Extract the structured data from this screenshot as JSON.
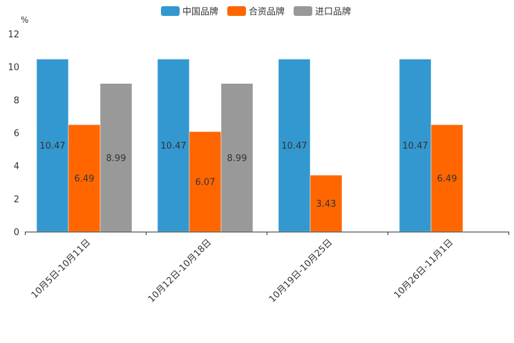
{
  "chart_data": {
    "type": "bar",
    "title": "",
    "xlabel": "",
    "ylabel": "%",
    "ylim": [
      0,
      12
    ],
    "yticks": [
      0,
      2,
      4,
      6,
      8,
      10,
      12
    ],
    "grid": false,
    "legend_position": "top",
    "categories": [
      "10月5日-10月11日",
      "10月12日-10月18日",
      "10月19日-10月25日",
      "10月26日-11月1日"
    ],
    "series": [
      {
        "name": "中国品牌",
        "color": "#3398d0",
        "values": [
          10.47,
          10.47,
          10.47,
          10.47
        ]
      },
      {
        "name": "合资品牌",
        "color": "#ff6600",
        "values": [
          6.49,
          6.07,
          3.43,
          6.49
        ]
      },
      {
        "name": "进口品牌",
        "color": "#999999",
        "values": [
          8.99,
          8.99,
          null,
          null
        ]
      }
    ]
  }
}
